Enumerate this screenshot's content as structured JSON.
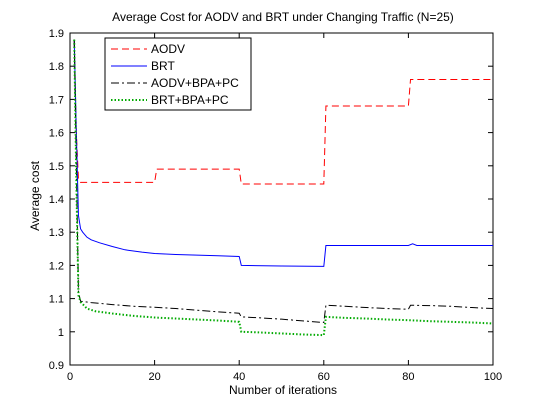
{
  "chart_data": {
    "type": "line",
    "title": "Average Cost for AODV and BRT under Changing Traffic (N=25)",
    "xlabel": "Number of iterations",
    "ylabel": "Average cost",
    "xlim": [
      0,
      100
    ],
    "ylim": [
      0.9,
      1.9
    ],
    "xticks": [
      0,
      20,
      40,
      60,
      80,
      100
    ],
    "yticks": [
      0.9,
      1,
      1.1,
      1.2,
      1.3,
      1.4,
      1.5,
      1.6,
      1.7,
      1.8,
      1.9
    ],
    "xtick_labels": [
      "0",
      "20",
      "40",
      "60",
      "80",
      "100"
    ],
    "ytick_labels": [
      "0.9",
      "1",
      "1.1",
      "1.2",
      "1.3",
      "1.4",
      "1.5",
      "1.6",
      "1.7",
      "1.8",
      "1.9"
    ],
    "grid": false,
    "legend_position": "top-left",
    "series": [
      {
        "name": "AODV",
        "color": "#ff0000",
        "style": "dashed",
        "points": [
          [
            1,
            1.88
          ],
          [
            1.5,
            1.6
          ],
          [
            2,
            1.46
          ],
          [
            2.5,
            1.45
          ],
          [
            20,
            1.45
          ],
          [
            20.5,
            1.49
          ],
          [
            40,
            1.49
          ],
          [
            40.5,
            1.445
          ],
          [
            60,
            1.445
          ],
          [
            60.5,
            1.68
          ],
          [
            80,
            1.68
          ],
          [
            80.5,
            1.76
          ],
          [
            100,
            1.76
          ]
        ]
      },
      {
        "name": "BRT",
        "color": "#0000ff",
        "style": "solid",
        "points": [
          [
            1,
            1.88
          ],
          [
            1.5,
            1.6
          ],
          [
            2,
            1.35
          ],
          [
            2.5,
            1.31
          ],
          [
            3,
            1.3
          ],
          [
            4,
            1.285
          ],
          [
            5,
            1.277
          ],
          [
            7,
            1.268
          ],
          [
            10,
            1.257
          ],
          [
            13,
            1.247
          ],
          [
            17,
            1.24
          ],
          [
            20,
            1.236
          ],
          [
            25,
            1.233
          ],
          [
            30,
            1.231
          ],
          [
            35,
            1.229
          ],
          [
            40,
            1.227
          ],
          [
            40.5,
            1.2
          ],
          [
            50,
            1.198
          ],
          [
            60,
            1.197
          ],
          [
            60.5,
            1.26
          ],
          [
            70,
            1.26
          ],
          [
            80,
            1.26
          ],
          [
            81,
            1.265
          ],
          [
            82,
            1.26
          ],
          [
            100,
            1.26
          ]
        ]
      },
      {
        "name": "AODV+BPA+PC",
        "color": "#000000",
        "style": "dashdot",
        "points": [
          [
            1,
            1.88
          ],
          [
            1.5,
            1.5
          ],
          [
            2,
            1.12
          ],
          [
            2.5,
            1.092
          ],
          [
            5,
            1.088
          ],
          [
            10,
            1.082
          ],
          [
            15,
            1.077
          ],
          [
            20,
            1.074
          ],
          [
            25,
            1.07
          ],
          [
            30,
            1.065
          ],
          [
            35,
            1.06
          ],
          [
            40,
            1.056
          ],
          [
            40.5,
            1.045
          ],
          [
            45,
            1.042
          ],
          [
            50,
            1.038
          ],
          [
            55,
            1.033
          ],
          [
            60,
            1.028
          ],
          [
            60.5,
            1.08
          ],
          [
            65,
            1.077
          ],
          [
            70,
            1.073
          ],
          [
            75,
            1.07
          ],
          [
            80,
            1.068
          ],
          [
            80.5,
            1.08
          ],
          [
            85,
            1.079
          ],
          [
            90,
            1.077
          ],
          [
            95,
            1.073
          ],
          [
            100,
            1.07
          ]
        ]
      },
      {
        "name": "BRT+BPA+PC",
        "color": "#00aa00",
        "style": "dotted",
        "points": [
          [
            1,
            1.88
          ],
          [
            1.5,
            1.45
          ],
          [
            2,
            1.11
          ],
          [
            2.5,
            1.09
          ],
          [
            4,
            1.07
          ],
          [
            6,
            1.062
          ],
          [
            10,
            1.055
          ],
          [
            15,
            1.048
          ],
          [
            20,
            1.043
          ],
          [
            25,
            1.04
          ],
          [
            30,
            1.037
          ],
          [
            35,
            1.034
          ],
          [
            40,
            1.03
          ],
          [
            40.5,
            1.0
          ],
          [
            45,
            0.998
          ],
          [
            50,
            0.995
          ],
          [
            55,
            0.992
          ],
          [
            60,
            0.99
          ],
          [
            60.5,
            1.045
          ],
          [
            65,
            1.042
          ],
          [
            70,
            1.04
          ],
          [
            75,
            1.037
          ],
          [
            80,
            1.035
          ],
          [
            85,
            1.032
          ],
          [
            90,
            1.03
          ],
          [
            95,
            1.028
          ],
          [
            100,
            1.025
          ]
        ]
      }
    ]
  }
}
